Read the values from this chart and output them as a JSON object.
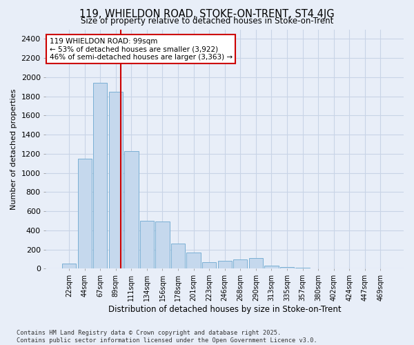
{
  "title": "119, WHIELDON ROAD, STOKE-ON-TRENT, ST4 4JG",
  "subtitle": "Size of property relative to detached houses in Stoke-on-Trent",
  "xlabel": "Distribution of detached houses by size in Stoke-on-Trent",
  "ylabel": "Number of detached properties",
  "annotation_text": "119 WHIELDON ROAD: 99sqm\n← 53% of detached houses are smaller (3,922)\n46% of semi-detached houses are larger (3,363) →",
  "footer_line1": "Contains HM Land Registry data © Crown copyright and database right 2025.",
  "footer_line2": "Contains public sector information licensed under the Open Government Licence v3.0.",
  "bin_labels": [
    "22sqm",
    "44sqm",
    "67sqm",
    "89sqm",
    "111sqm",
    "134sqm",
    "156sqm",
    "178sqm",
    "201sqm",
    "223sqm",
    "246sqm",
    "268sqm",
    "290sqm",
    "313sqm",
    "335sqm",
    "357sqm",
    "380sqm",
    "402sqm",
    "424sqm",
    "447sqm",
    "469sqm"
  ],
  "bin_values": [
    55,
    1150,
    1940,
    1850,
    1230,
    500,
    490,
    265,
    170,
    70,
    80,
    100,
    110,
    30,
    15,
    10,
    5,
    5,
    3,
    2,
    1
  ],
  "bar_color": "#c5d8ed",
  "bar_edge_color": "#7aafd4",
  "vline_color": "#cc0000",
  "annotation_box_color": "#ffffff",
  "annotation_box_edge": "#cc0000",
  "grid_color": "#c8d4e6",
  "bg_color": "#e8eef8",
  "ylim": [
    0,
    2500
  ],
  "yticks": [
    0,
    200,
    400,
    600,
    800,
    1000,
    1200,
    1400,
    1600,
    1800,
    2000,
    2200,
    2400
  ],
  "vline_x": 3.3
}
